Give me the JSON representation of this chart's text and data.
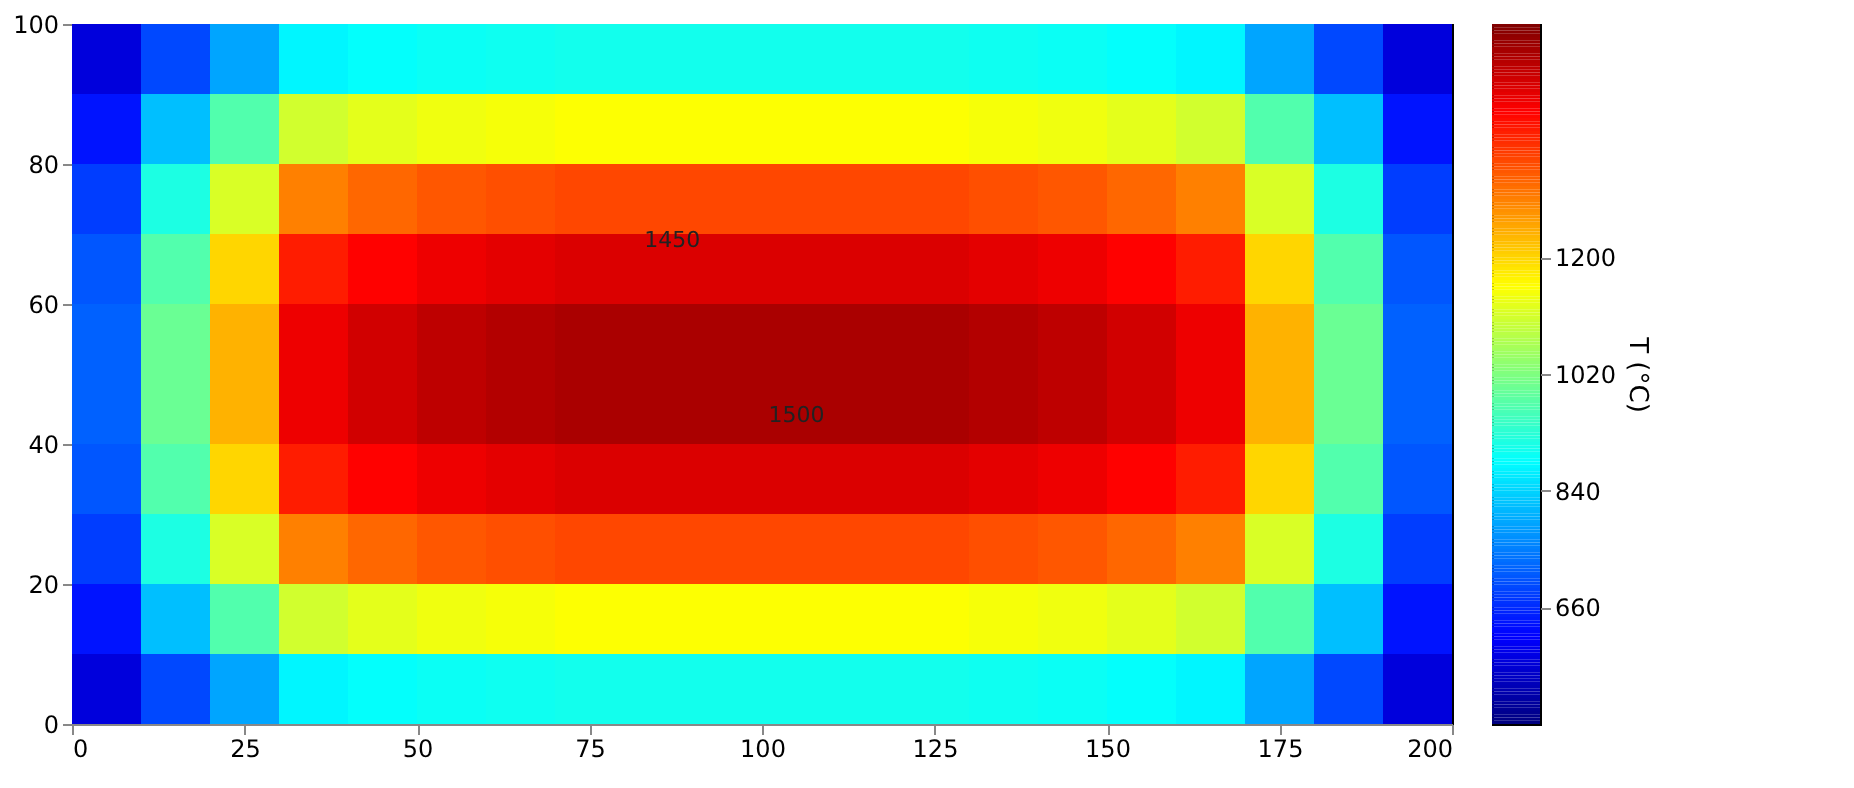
{
  "chart_data": {
    "type": "heatmap",
    "clabel": "T (°C)",
    "x": [
      5,
      15,
      25,
      35,
      45,
      55,
      65,
      75,
      85,
      95,
      105,
      115,
      125,
      135,
      145,
      155,
      165,
      175,
      185,
      195
    ],
    "y": [
      95,
      85,
      75,
      65,
      55,
      45,
      35,
      25,
      15,
      5
    ],
    "cells": [
      [
        578,
        692,
        790,
        875,
        888,
        896,
        900,
        904,
        904,
        904,
        904,
        904,
        904,
        900,
        896,
        888,
        875,
        790,
        692,
        578
      ],
      [
        635,
        817,
        971,
        1106,
        1126,
        1139,
        1146,
        1153,
        1153,
        1153,
        1153,
        1153,
        1153,
        1146,
        1139,
        1126,
        1106,
        971,
        817,
        635
      ],
      [
        680,
        915,
        1115,
        1289,
        1315,
        1332,
        1341,
        1349,
        1349,
        1349,
        1349,
        1349,
        1349,
        1341,
        1332,
        1315,
        1289,
        1115,
        915,
        680
      ],
      [
        706,
        972,
        1198,
        1395,
        1424,
        1443,
        1454,
        1463,
        1463,
        1463,
        1463,
        1463,
        1463,
        1454,
        1443,
        1424,
        1395,
        1198,
        972,
        706
      ],
      [
        718,
        998,
        1236,
        1443,
        1474,
        1494,
        1505,
        1515,
        1515,
        1515,
        1515,
        1515,
        1515,
        1505,
        1494,
        1474,
        1443,
        1236,
        998,
        718
      ],
      [
        718,
        998,
        1236,
        1443,
        1474,
        1494,
        1505,
        1515,
        1515,
        1515,
        1515,
        1515,
        1515,
        1505,
        1494,
        1474,
        1443,
        1236,
        998,
        718
      ],
      [
        706,
        972,
        1198,
        1395,
        1424,
        1443,
        1454,
        1463,
        1463,
        1463,
        1463,
        1463,
        1463,
        1454,
        1443,
        1424,
        1395,
        1198,
        972,
        706
      ],
      [
        680,
        915,
        1115,
        1289,
        1315,
        1332,
        1341,
        1349,
        1349,
        1349,
        1349,
        1349,
        1349,
        1341,
        1332,
        1315,
        1289,
        1115,
        915,
        680
      ],
      [
        635,
        817,
        971,
        1106,
        1126,
        1139,
        1146,
        1153,
        1153,
        1153,
        1153,
        1153,
        1153,
        1146,
        1139,
        1126,
        1106,
        971,
        817,
        635
      ],
      [
        578,
        692,
        790,
        875,
        888,
        896,
        900,
        904,
        904,
        904,
        904,
        904,
        904,
        900,
        896,
        888,
        875,
        790,
        692,
        578
      ]
    ],
    "xlim": [
      0,
      200
    ],
    "xticks": [
      0,
      25,
      50,
      75,
      100,
      125,
      150,
      175,
      200
    ],
    "ylim": [
      0,
      100
    ],
    "yticks": [
      0,
      20,
      40,
      60,
      80,
      100
    ],
    "clim": [
      480,
      1560
    ],
    "cticks": [
      660,
      840,
      1020,
      1200
    ],
    "annotations": [
      "1450",
      "1500"
    ]
  }
}
